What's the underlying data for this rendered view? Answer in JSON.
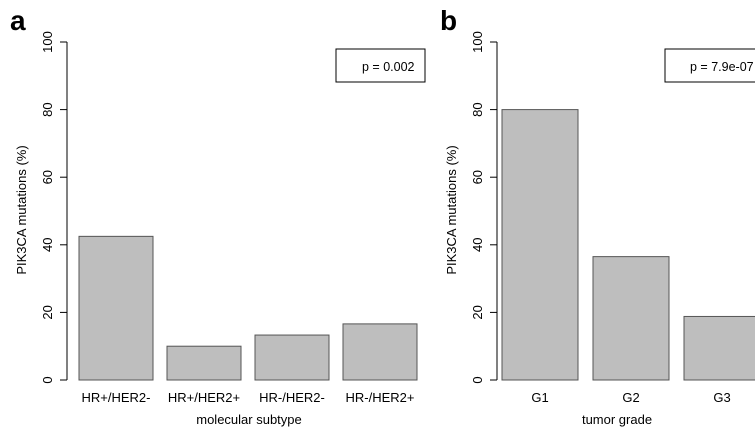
{
  "colors": {
    "bar_fill": "#bebebe",
    "bar_stroke": "#555555",
    "axis": "#000000"
  },
  "chart_data": [
    {
      "type": "bar",
      "panel_label": "a",
      "categories": [
        "HR+/HER2-",
        "HR+/HER2+",
        "HR-/HER2-",
        "HR-/HER2+"
      ],
      "values": [
        42.5,
        10.0,
        13.3,
        16.6
      ],
      "xlabel": "molecular subtype",
      "ylabel": "PIK3CA mutations (%)",
      "ylim": [
        0,
        100
      ],
      "yticks": [
        "0",
        "20",
        "40",
        "60",
        "80",
        "100"
      ],
      "annotation": "p = 0.002",
      "grid": false,
      "legend": "none"
    },
    {
      "type": "bar",
      "panel_label": "b",
      "categories": [
        "G1",
        "G2",
        "G3"
      ],
      "values": [
        80.0,
        36.5,
        18.8
      ],
      "xlabel": "tumor grade",
      "ylabel": "PIK3CA mutations (%)",
      "ylim": [
        0,
        100
      ],
      "yticks": [
        "0",
        "20",
        "40",
        "60",
        "80",
        "100"
      ],
      "annotation": "p = 7.9e-07",
      "grid": false,
      "legend": "none"
    }
  ]
}
